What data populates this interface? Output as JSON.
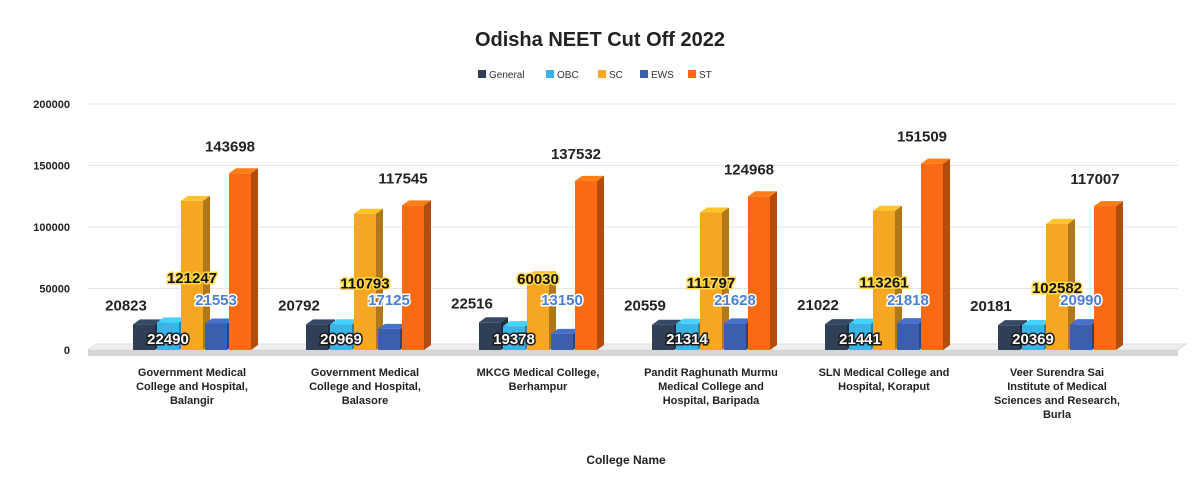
{
  "chart_data": {
    "type": "bar",
    "title": "Odisha NEET Cut Off 2022",
    "xlabel": "College Name",
    "ylabel": "",
    "ylim": [
      0,
      200000
    ],
    "yticks": [
      "0",
      "50000",
      "100000",
      "150000",
      "200000"
    ],
    "categories": [
      [
        "Government Medical",
        "College and Hospital,",
        "Balangir"
      ],
      [
        "Government Medical",
        "College and Hospital,",
        "Balasore"
      ],
      [
        "MKCG Medical College,",
        "Berhampur"
      ],
      [
        "Pandit Raghunath Murmu",
        "Medical College and",
        "Hospital, Baripada"
      ],
      [
        "SLN Medical College and",
        "Hospital, Koraput"
      ],
      [
        "Veer Surendra Sai",
        "Institute of Medical",
        "Sciences and Research,",
        "Burla"
      ]
    ],
    "series": [
      {
        "name": "General",
        "color": "#2e3f56",
        "values": [
          20823,
          20792,
          22516,
          20559,
          21022,
          20181
        ]
      },
      {
        "name": "OBC",
        "color": "#3ab3e6",
        "values": [
          22490,
          20969,
          19378,
          21314,
          21441,
          20369
        ]
      },
      {
        "name": "SC",
        "color": "#f5a623",
        "values": [
          121247,
          110793,
          60030,
          111797,
          113261,
          102582
        ]
      },
      {
        "name": "EWS",
        "color": "#3b5fae",
        "values": [
          21553,
          17125,
          13150,
          21628,
          21818,
          20990
        ]
      },
      {
        "name": "ST",
        "color": "#f96a12",
        "values": [
          143698,
          117545,
          137532,
          124968,
          151509,
          117007
        ]
      }
    ],
    "grid": true,
    "legend": "top-center"
  }
}
